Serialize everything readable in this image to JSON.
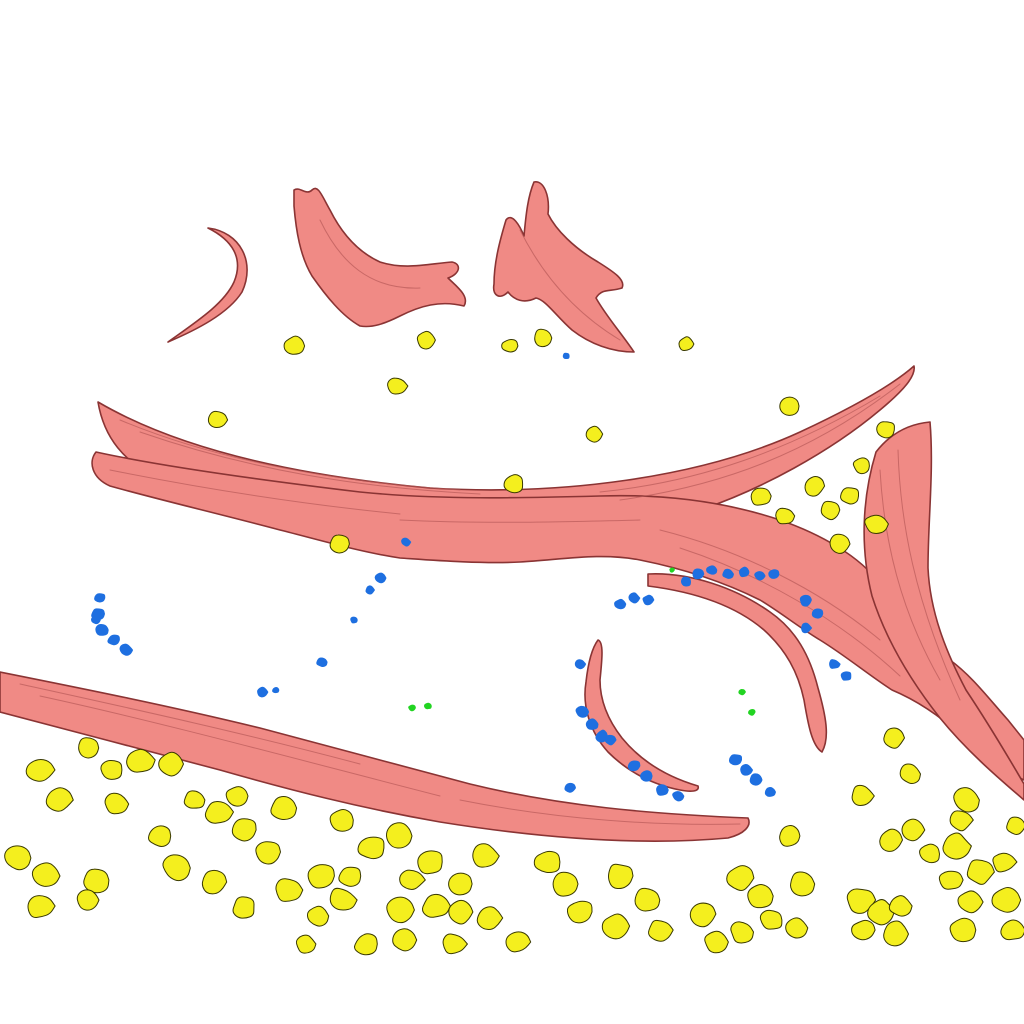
{
  "scene": {
    "background": "#ffffff",
    "fiber_color": "#f08a85",
    "fiber_edge": "#8a3434",
    "fiber_shade": "#b85a58",
    "particle_yellow": "#f4ef1e",
    "particle_yellow_edge": "#3a3a00",
    "particle_blue": "#1e6fe0",
    "particle_green": "#22d422"
  }
}
